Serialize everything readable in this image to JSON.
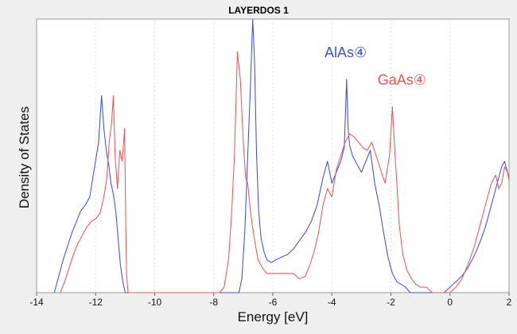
{
  "chart_data": {
    "type": "line",
    "title": "LAYERDOS 1",
    "xlabel": "Energy [eV]",
    "ylabel": "Density of States",
    "xlim": [
      -14,
      2
    ],
    "ylim": [
      0,
      1
    ],
    "x_ticks": [
      -14,
      -12,
      -10,
      -8,
      -6,
      -4,
      -2,
      0,
      2
    ],
    "x_tick_labels": [
      "-14",
      "-12",
      "-10",
      "-8",
      "-6",
      "-4",
      "-2",
      "0",
      "2"
    ],
    "grid": true,
    "series": [
      {
        "name": "AlAs④",
        "color": "#3f4fe0",
        "x": [
          -13.4,
          -13.25,
          -13.1,
          -12.95,
          -12.8,
          -12.65,
          -12.5,
          -12.35,
          -12.2,
          -12.05,
          -11.9,
          -11.8,
          -11.72,
          -11.64,
          -11.56,
          -11.48,
          -11.4,
          -11.32,
          -11.24,
          -11.16,
          -11.08,
          -11.0,
          -10.9,
          -10.6,
          -10.0,
          -8.0,
          -7.5,
          -7.45,
          -7.35,
          -7.25,
          -7.15,
          -7.05,
          -6.95,
          -6.85,
          -6.75,
          -6.68,
          -6.62,
          -6.55,
          -6.48,
          -6.4,
          -6.3,
          -6.2,
          -6.05,
          -5.9,
          -5.7,
          -5.5,
          -5.3,
          -5.1,
          -4.9,
          -4.7,
          -4.5,
          -4.3,
          -4.15,
          -4.0,
          -3.85,
          -3.7,
          -3.58,
          -3.5,
          -3.45,
          -3.4,
          -3.3,
          -3.15,
          -3.0,
          -2.85,
          -2.7,
          -2.55,
          -2.4,
          -2.25,
          -2.1,
          -1.95,
          -1.8,
          -1.65,
          -1.5,
          -1.35,
          -1.2,
          -1.0,
          -0.8,
          -0.6,
          -0.4,
          -0.2,
          0.0,
          0.2,
          0.4,
          0.6,
          0.8,
          1.0,
          1.2,
          1.4,
          1.6,
          1.75,
          1.85,
          1.95,
          2.0
        ],
        "y": [
          0.0,
          0.06,
          0.12,
          0.17,
          0.22,
          0.26,
          0.3,
          0.32,
          0.35,
          0.45,
          0.55,
          0.72,
          0.6,
          0.52,
          0.47,
          0.4,
          0.36,
          0.3,
          0.2,
          0.1,
          0.04,
          0.0,
          0.0,
          0.0,
          0.0,
          0.0,
          0.0,
          0.0,
          0.0,
          0.0,
          0.0,
          0.05,
          0.22,
          0.5,
          0.78,
          1.0,
          0.85,
          0.5,
          0.3,
          0.2,
          0.15,
          0.12,
          0.11,
          0.12,
          0.13,
          0.14,
          0.16,
          0.19,
          0.22,
          0.26,
          0.32,
          0.42,
          0.48,
          0.4,
          0.44,
          0.48,
          0.53,
          0.78,
          0.6,
          0.54,
          0.5,
          0.47,
          0.44,
          0.48,
          0.52,
          0.4,
          0.32,
          0.22,
          0.13,
          0.07,
          0.04,
          0.03,
          0.02,
          0.0,
          0.0,
          0.0,
          0.0,
          0.0,
          0.0,
          0.0,
          0.02,
          0.04,
          0.06,
          0.09,
          0.13,
          0.18,
          0.24,
          0.32,
          0.4,
          0.46,
          0.48,
          0.44,
          0.42
        ]
      },
      {
        "name": "GaAs④",
        "color": "#f05454",
        "x": [
          -13.2,
          -13.05,
          -12.9,
          -12.75,
          -12.6,
          -12.45,
          -12.3,
          -12.15,
          -12.0,
          -11.85,
          -11.72,
          -11.62,
          -11.54,
          -11.46,
          -11.4,
          -11.34,
          -11.26,
          -11.18,
          -11.1,
          -11.02,
          -10.98,
          -10.95,
          -10.9,
          -10.6,
          -10.0,
          -8.0,
          -7.8,
          -7.65,
          -7.5,
          -7.4,
          -7.3,
          -7.2,
          -7.1,
          -7.0,
          -6.92,
          -6.85,
          -6.78,
          -6.7,
          -6.6,
          -6.5,
          -6.35,
          -6.2,
          -6.05,
          -5.9,
          -5.7,
          -5.5,
          -5.3,
          -5.1,
          -4.9,
          -4.75,
          -4.6,
          -4.45,
          -4.3,
          -4.15,
          -4.0,
          -3.85,
          -3.7,
          -3.55,
          -3.4,
          -3.25,
          -3.1,
          -2.95,
          -2.8,
          -2.65,
          -2.5,
          -2.35,
          -2.2,
          -2.05,
          -1.95,
          -1.87,
          -1.8,
          -1.72,
          -1.6,
          -1.45,
          -1.3,
          -1.15,
          -1.0,
          -0.8,
          -0.6,
          -0.4,
          -0.2,
          0.0,
          0.2,
          0.4,
          0.6,
          0.8,
          1.0,
          1.2,
          1.4,
          1.55,
          1.65,
          1.75,
          1.85,
          1.95,
          2.0
        ],
        "y": [
          0.0,
          0.04,
          0.09,
          0.14,
          0.18,
          0.21,
          0.24,
          0.26,
          0.27,
          0.29,
          0.35,
          0.42,
          0.55,
          0.62,
          0.72,
          0.5,
          0.38,
          0.52,
          0.48,
          0.6,
          0.25,
          0.06,
          0.0,
          0.0,
          0.0,
          0.0,
          0.0,
          0.02,
          0.12,
          0.28,
          0.5,
          0.88,
          0.78,
          0.55,
          0.42,
          0.4,
          0.32,
          0.25,
          0.18,
          0.12,
          0.09,
          0.07,
          0.07,
          0.07,
          0.07,
          0.07,
          0.07,
          0.05,
          0.06,
          0.1,
          0.15,
          0.22,
          0.32,
          0.38,
          0.35,
          0.45,
          0.5,
          0.55,
          0.58,
          0.57,
          0.55,
          0.53,
          0.52,
          0.55,
          0.5,
          0.45,
          0.4,
          0.5,
          0.68,
          0.52,
          0.4,
          0.25,
          0.14,
          0.08,
          0.05,
          0.03,
          0.02,
          0.02,
          0.0,
          0.0,
          0.0,
          0.0,
          0.02,
          0.05,
          0.1,
          0.16,
          0.24,
          0.32,
          0.4,
          0.43,
          0.38,
          0.4,
          0.46,
          0.44,
          0.41
        ]
      }
    ],
    "annotations": [
      {
        "text": "AlAs④",
        "x": -4.25,
        "y": 0.86,
        "color": "#3f4fe0"
      },
      {
        "text": "GaAs④",
        "x": -2.45,
        "y": 0.76,
        "color": "#f05454"
      }
    ]
  }
}
